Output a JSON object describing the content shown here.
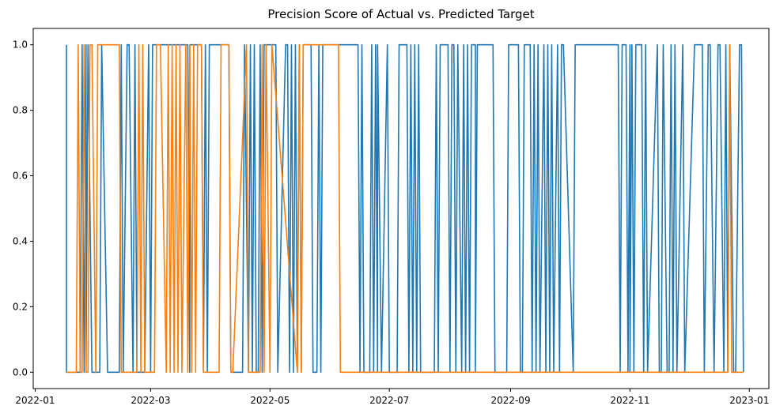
{
  "chart_data": {
    "type": "line",
    "title": "Precision Score of Actual vs. Predicted Target",
    "xlabel": "",
    "ylabel": "",
    "xlim": [
      "2021-12-31",
      "2023-01-11"
    ],
    "ylim": [
      -0.05,
      1.05
    ],
    "x_ticks": [
      "2022-01",
      "2022-03",
      "2022-05",
      "2022-07",
      "2022-09",
      "2022-11",
      "2023-01"
    ],
    "y_ticks": [
      "0.0",
      "0.2",
      "0.4",
      "0.6",
      "0.8",
      "1.0"
    ],
    "grid": false,
    "legend": "none",
    "series": [
      {
        "color": "#1f77b4",
        "x": [
          "2022-01-17",
          "2022-01-17",
          "2022-01-18",
          "2022-01-24",
          "2022-01-25",
          "2022-01-26",
          "2022-01-27",
          "2022-01-27",
          "2022-01-28",
          "2022-01-28",
          "2022-01-30",
          "2022-02-03",
          "2022-02-04",
          "2022-02-04",
          "2022-02-07",
          "2022-02-08",
          "2022-02-13",
          "2022-02-14",
          "2022-02-15",
          "2022-02-17",
          "2022-02-18",
          "2022-02-20",
          "2022-02-21",
          "2022-02-22",
          "2022-02-25",
          "2022-02-26",
          "2022-02-28",
          "2022-03-01",
          "2022-03-02",
          "2022-03-02",
          "2022-03-20",
          "2022-03-21",
          "2022-03-21",
          "2022-03-22",
          "2022-03-27",
          "2022-03-28",
          "2022-03-29",
          "2022-03-30",
          "2022-03-31",
          "2022-04-01",
          "2022-04-10",
          "2022-04-11",
          "2022-04-17",
          "2022-04-18",
          "2022-04-20",
          "2022-04-21",
          "2022-04-22",
          "2022-04-23",
          "2022-04-24",
          "2022-04-25",
          "2022-04-26",
          "2022-04-26",
          "2022-04-27",
          "2022-04-28",
          "2022-05-04",
          "2022-05-05",
          "2022-05-09",
          "2022-05-10",
          "2022-05-11",
          "2022-05-12",
          "2022-05-13",
          "2022-05-14",
          "2022-05-15",
          "2022-05-16",
          "2022-05-17",
          "2022-05-18",
          "2022-05-22",
          "2022-05-23",
          "2022-05-25",
          "2022-05-26",
          "2022-05-26",
          "2022-05-27",
          "2022-05-28",
          "2022-05-29",
          "2022-05-30",
          "2022-06-15",
          "2022-06-16",
          "2022-06-17",
          "2022-06-18",
          "2022-06-21",
          "2022-06-22",
          "2022-06-23",
          "2022-06-24",
          "2022-06-25",
          "2022-06-25",
          "2022-06-27",
          "2022-06-30",
          "2022-07-01",
          "2022-07-05",
          "2022-07-06",
          "2022-07-10",
          "2022-07-11",
          "2022-07-12",
          "2022-07-13",
          "2022-07-14",
          "2022-07-15",
          "2022-07-16",
          "2022-07-17",
          "2022-07-24",
          "2022-07-25",
          "2022-07-26",
          "2022-07-27",
          "2022-07-31",
          "2022-08-01",
          "2022-08-02",
          "2022-08-03",
          "2022-08-04",
          "2022-08-05",
          "2022-08-07",
          "2022-08-08",
          "2022-08-09",
          "2022-08-10",
          "2022-08-11",
          "2022-08-12",
          "2022-08-14",
          "2022-08-14",
          "2022-08-15",
          "2022-08-16",
          "2022-08-23",
          "2022-08-24",
          "2022-08-30",
          "2022-08-31",
          "2022-09-05",
          "2022-09-06",
          "2022-09-07",
          "2022-09-08",
          "2022-09-11",
          "2022-09-12",
          "2022-09-13",
          "2022-09-14",
          "2022-09-15",
          "2022-09-16",
          "2022-09-18",
          "2022-09-19",
          "2022-09-20",
          "2022-09-21",
          "2022-09-22",
          "2022-09-23",
          "2022-09-25",
          "2022-09-26",
          "2022-09-27",
          "2022-09-28",
          "2022-10-03",
          "2022-10-04",
          "2022-10-05",
          "2022-10-26",
          "2022-10-27",
          "2022-10-28",
          "2022-10-30",
          "2022-10-31",
          "2022-11-01",
          "2022-11-01",
          "2022-11-02",
          "2022-11-03",
          "2022-11-04",
          "2022-11-07",
          "2022-11-08",
          "2022-11-09",
          "2022-11-10",
          "2022-11-15",
          "2022-11-16",
          "2022-11-17",
          "2022-11-18",
          "2022-11-20",
          "2022-11-21",
          "2022-11-22",
          "2022-11-23",
          "2022-11-24",
          "2022-11-25",
          "2022-11-28",
          "2022-11-29",
          "2022-12-04",
          "2022-12-05",
          "2022-12-08",
          "2022-12-09",
          "2022-12-11",
          "2022-12-12",
          "2022-12-14",
          "2022-12-16",
          "2022-12-17",
          "2022-12-19",
          "2022-12-20",
          "2022-12-21",
          "2022-12-22",
          "2022-12-24",
          "2022-12-25",
          "2022-12-27",
          "2022-12-28",
          "2022-12-29"
        ],
        "y": [
          1,
          0,
          0,
          0,
          1,
          0,
          1,
          0,
          1,
          1,
          0,
          0,
          1,
          1,
          0,
          0,
          0,
          1,
          0,
          1,
          1,
          0,
          1,
          0,
          0,
          0,
          1,
          0,
          1,
          1,
          1,
          0,
          1,
          1,
          1,
          0,
          1,
          0,
          1,
          1,
          1,
          0,
          0,
          1,
          0,
          1,
          0,
          1,
          0,
          0,
          1,
          1,
          0,
          1,
          1,
          0,
          1,
          1,
          0,
          1,
          0,
          1,
          0,
          1,
          0,
          1,
          1,
          0,
          0,
          1,
          1,
          0,
          1,
          1,
          1,
          1,
          0,
          1,
          0,
          0,
          1,
          0,
          1,
          0,
          1,
          0,
          1,
          0,
          0,
          1,
          1,
          0,
          1,
          0,
          1,
          0,
          1,
          0,
          0,
          1,
          0,
          1,
          1,
          0,
          1,
          1,
          0,
          1,
          0,
          1,
          0,
          1,
          0,
          1,
          1,
          0,
          1,
          1,
          1,
          0,
          0,
          1,
          1,
          0,
          0,
          1,
          1,
          0,
          1,
          0,
          1,
          0,
          1,
          0,
          1,
          0,
          1,
          0,
          1,
          0,
          1,
          1,
          0,
          1,
          1,
          1,
          0,
          1,
          1,
          0,
          1,
          0,
          1,
          0,
          1,
          1,
          0,
          1,
          0,
          1,
          0,
          0,
          1,
          0,
          0,
          1,
          0,
          1,
          0,
          1,
          0,
          1,
          1,
          1,
          0,
          1,
          1,
          0,
          1,
          1,
          0,
          1,
          0,
          1,
          0,
          0,
          1,
          1,
          0
        ]
      },
      {
        "color": "#ff7f0e",
        "x": [
          "2022-01-17",
          "2022-01-22",
          "2022-01-23",
          "2022-01-24",
          "2022-01-25",
          "2022-01-26",
          "2022-01-27",
          "2022-01-28",
          "2022-01-29",
          "2022-01-30",
          "2022-02-01",
          "2022-02-02",
          "2022-02-13",
          "2022-02-14",
          "2022-02-21",
          "2022-02-22",
          "2022-02-23",
          "2022-02-24",
          "2022-02-25",
          "2022-02-26",
          "2022-03-03",
          "2022-03-04",
          "2022-03-05",
          "2022-03-06",
          "2022-03-09",
          "2022-03-10",
          "2022-03-11",
          "2022-03-12",
          "2022-03-13",
          "2022-03-14",
          "2022-03-15",
          "2022-03-16",
          "2022-03-17",
          "2022-03-19",
          "2022-03-20",
          "2022-03-21",
          "2022-03-22",
          "2022-03-23",
          "2022-03-24",
          "2022-03-25",
          "2022-03-25",
          "2022-03-27",
          "2022-03-28",
          "2022-04-05",
          "2022-04-06",
          "2022-04-07",
          "2022-04-10",
          "2022-04-11",
          "2022-04-12",
          "2022-04-19",
          "2022-04-20",
          "2022-04-26",
          "2022-04-27",
          "2022-04-28",
          "2022-04-29",
          "2022-05-01",
          "2022-05-02",
          "2022-05-15",
          "2022-05-16",
          "2022-05-17",
          "2022-05-18",
          "2022-05-19",
          "2022-06-05",
          "2022-06-06",
          "2022-12-21",
          "2022-12-22",
          "2022-12-23",
          "2022-12-29"
        ],
        "y": [
          0,
          0,
          1,
          0,
          0,
          1,
          0,
          0,
          1,
          1,
          0,
          1,
          1,
          0,
          0,
          0,
          1,
          0,
          1,
          0,
          0,
          1,
          1,
          1,
          0,
          1,
          0,
          1,
          0,
          1,
          0,
          1,
          0,
          1,
          0,
          1,
          0,
          1,
          0,
          1,
          1,
          1,
          0,
          0,
          1,
          1,
          1,
          0,
          0,
          1,
          0,
          0,
          1,
          0,
          1,
          0,
          1,
          0,
          1,
          0,
          1,
          1,
          1,
          0,
          0,
          1,
          0,
          0
        ]
      }
    ]
  }
}
